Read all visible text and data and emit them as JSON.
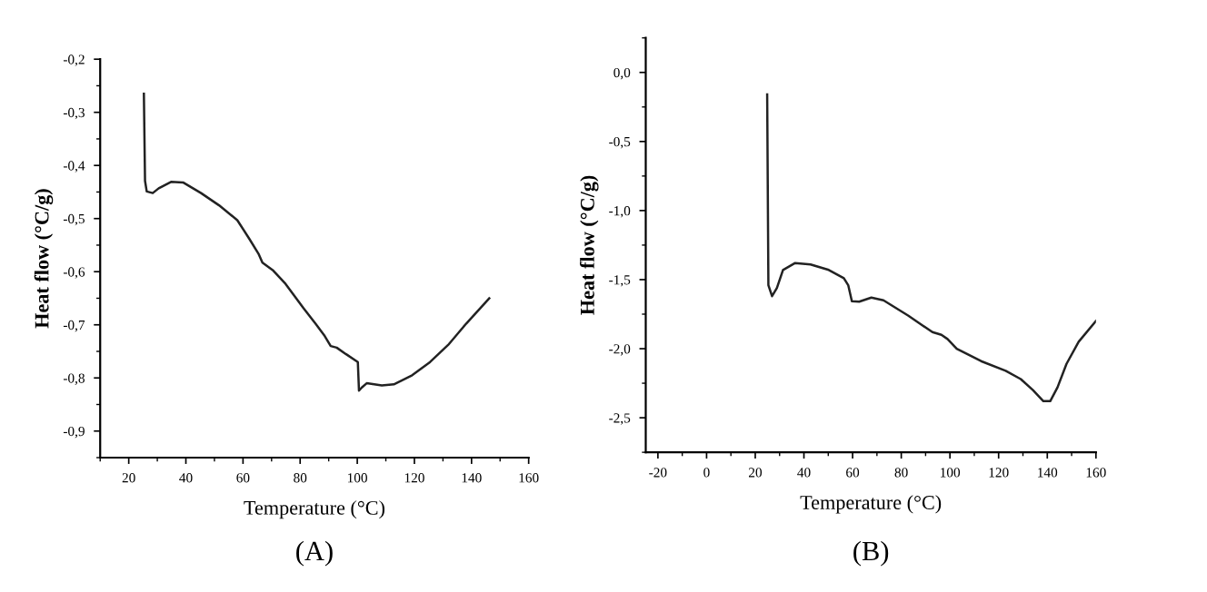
{
  "chart_data": [
    {
      "type": "line",
      "xlabel": "Temperature (°C)",
      "ylabel": "Heat flow (°C/g)",
      "annotations": [
        "(A)"
      ],
      "xlim": [
        10,
        160
      ],
      "xticks": [
        20,
        40,
        60,
        80,
        100,
        120,
        140,
        160
      ],
      "ylim": [
        -0.95,
        -0.2
      ],
      "yticks": [
        {
          "value": -0.9,
          "label": "-0,9"
        },
        {
          "value": -0.8,
          "label": "-0,8"
        },
        {
          "value": -0.7,
          "label": "-0,7"
        },
        {
          "value": -0.6,
          "label": "-0,6"
        },
        {
          "value": -0.5,
          "label": "-0,5"
        },
        {
          "value": -0.4,
          "label": "-0,4"
        },
        {
          "value": -0.3,
          "label": "-0,3"
        },
        {
          "value": -0.2,
          "label": "-0,2"
        }
      ],
      "grid": false,
      "legend": false,
      "marker": "none",
      "line_style": "solid",
      "series": [
        {
          "color": "#222222",
          "x": [
            25.3,
            25.7,
            26.3,
            28.4,
            30.5,
            34.8,
            39,
            45.3,
            51.6,
            58,
            62.2,
            65.4,
            66.8,
            70.6,
            74.9,
            81.2,
            85.4,
            88.6,
            90.7,
            92.8,
            96,
            100.2,
            100.6,
            101.6,
            103.3,
            108.6,
            112.8,
            119.2,
            125.5,
            131.8,
            138.1,
            146.2
          ],
          "values": [
            -0.265,
            -0.429,
            -0.449,
            -0.452,
            -0.443,
            -0.431,
            -0.432,
            -0.452,
            -0.475,
            -0.503,
            -0.538,
            -0.566,
            -0.583,
            -0.598,
            -0.623,
            -0.669,
            -0.698,
            -0.721,
            -0.74,
            -0.743,
            -0.755,
            -0.77,
            -0.824,
            -0.818,
            -0.81,
            -0.814,
            -0.812,
            -0.795,
            -0.77,
            -0.738,
            -0.698,
            -0.65
          ]
        }
      ]
    },
    {
      "type": "line",
      "xlabel": "Temperature (°C)",
      "ylabel": "Heat flow (°C/g)",
      "annotations": [
        "(B)"
      ],
      "xlim": [
        -25,
        160
      ],
      "xticks": [
        -20,
        0,
        20,
        40,
        60,
        80,
        100,
        120,
        140,
        160
      ],
      "ylim": [
        -2.75,
        0.25
      ],
      "yticks": [
        {
          "value": -2.5,
          "label": "-2,5"
        },
        {
          "value": -2.0,
          "label": "-2,0"
        },
        {
          "value": -1.5,
          "label": "-1,5"
        },
        {
          "value": -1.0,
          "label": "-1,0"
        },
        {
          "value": -0.5,
          "label": "-0,5"
        },
        {
          "value": 0.0,
          "label": "0,0"
        }
      ],
      "grid": false,
      "legend": false,
      "marker": "none",
      "line_style": "solid",
      "series": [
        {
          "color": "#222222",
          "x": [
            24.9,
            25.4,
            26.9,
            28.9,
            31.4,
            36.4,
            42.7,
            50.2,
            56.4,
            58.2,
            59.7,
            62.7,
            67.7,
            72.7,
            82.8,
            92.8,
            96.5,
            99,
            102.8,
            112.8,
            122.9,
            129.1,
            134.1,
            138.4,
            141.2,
            144.2,
            147.9,
            152.9,
            160
          ],
          "values": [
            -0.16,
            -1.54,
            -1.62,
            -1.56,
            -1.43,
            -1.38,
            -1.39,
            -1.43,
            -1.49,
            -1.54,
            -1.656,
            -1.66,
            -1.63,
            -1.65,
            -1.76,
            -1.88,
            -1.9,
            -1.93,
            -2.0,
            -2.09,
            -2.16,
            -2.22,
            -2.3,
            -2.38,
            -2.38,
            -2.28,
            -2.11,
            -1.95,
            -1.8
          ]
        }
      ]
    }
  ]
}
